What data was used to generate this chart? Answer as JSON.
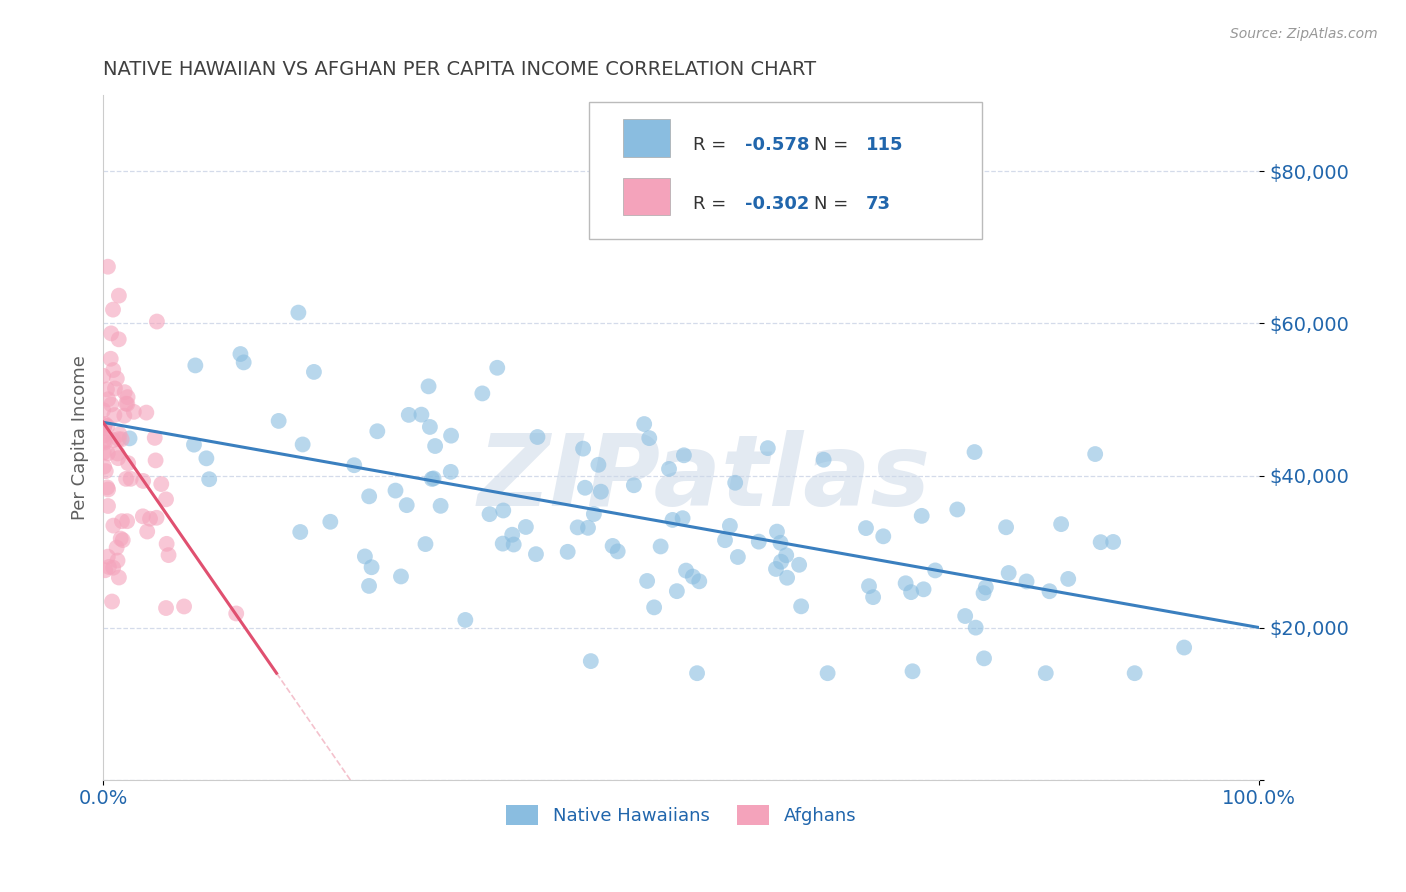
{
  "title": "NATIVE HAWAIIAN VS AFGHAN PER CAPITA INCOME CORRELATION CHART",
  "source_text": "Source: ZipAtlas.com",
  "ylabel": "Per Capita Income",
  "xlim": [
    0.0,
    100.0
  ],
  "ylim": [
    0,
    90000
  ],
  "yticks": [
    0,
    20000,
    40000,
    60000,
    80000
  ],
  "ytick_labels_right": [
    "",
    "$20,000",
    "$40,000",
    "$60,000",
    "$80,000"
  ],
  "xtick_labels": [
    "0.0%",
    "100.0%"
  ],
  "blue_R": "-0.578",
  "blue_N": "115",
  "pink_R": "-0.302",
  "pink_N": "73",
  "blue_color": "#8abde0",
  "pink_color": "#f4a3bb",
  "blue_line_color": "#3a7fbf",
  "pink_line_color": "#e05070",
  "watermark": "ZIPatlas",
  "watermark_color": "#ccd9e8",
  "legend_label_blue": "Native Hawaiians",
  "legend_label_pink": "Afghans",
  "background_color": "#ffffff",
  "grid_color": "#d0d8e8",
  "title_color": "#404040",
  "axis_label_color": "#606060",
  "tick_label_color": "#2166ac",
  "blue_seed": 42,
  "pink_seed": 7,
  "blue_n": 115,
  "pink_n": 73,
  "blue_intercept": 47000,
  "blue_slope": -270,
  "pink_intercept": 47000,
  "pink_slope": -2200
}
